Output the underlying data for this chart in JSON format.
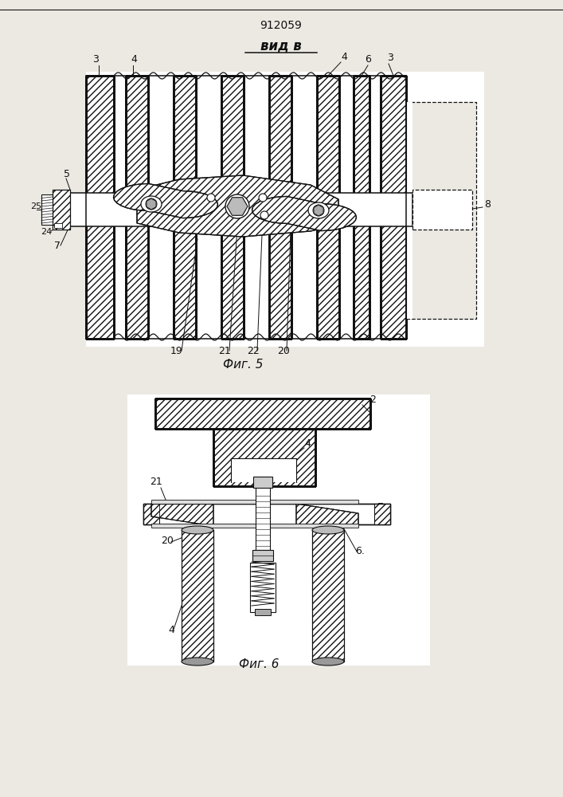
{
  "title": "912059",
  "view_label": "вид в",
  "fig5_label": "Фиг. 5",
  "fig6_label": "Фиг. 6",
  "bg_color": "#ece9e3",
  "line_color": "#111111",
  "fig_width": 7.07,
  "fig_height": 10.0
}
